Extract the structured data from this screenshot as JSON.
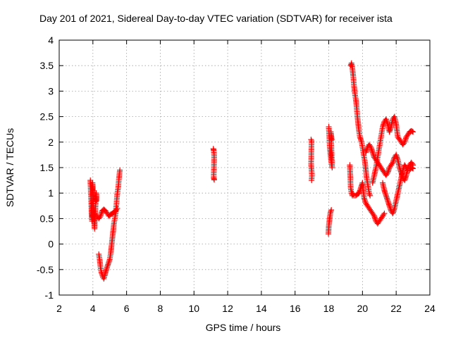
{
  "chart_data": {
    "type": "scatter",
    "title": "Day 201 of 2021, Sidereal Day-to-day VTEC variation (SDTVAR) for receiver ista",
    "xlabel": "GPS time / hours",
    "ylabel": "SDTVAR / TECUs",
    "xlim": [
      2,
      24
    ],
    "ylim": [
      -1,
      4
    ],
    "xticks": [
      2,
      4,
      6,
      8,
      10,
      12,
      14,
      16,
      18,
      20,
      22,
      24
    ],
    "yticks": [
      -1,
      -0.5,
      0,
      0.5,
      1,
      1.5,
      2,
      2.5,
      3,
      3.5,
      4
    ],
    "grid": true,
    "marker": "plus",
    "color": "#ff0000",
    "series": [
      {
        "name": "SDTVAR",
        "segments": [
          [
            [
              3.85,
              1.25
            ],
            [
              3.88,
              1.0
            ],
            [
              3.9,
              0.8
            ],
            [
              3.92,
              0.6
            ],
            [
              3.95,
              0.45
            ],
            [
              3.98,
              1.2
            ],
            [
              4.0,
              1.05
            ],
            [
              4.02,
              0.8
            ],
            [
              4.05,
              0.6
            ],
            [
              4.08,
              0.4
            ],
            [
              4.1,
              0.3
            ],
            [
              4.12,
              0.55
            ],
            [
              4.15,
              0.7
            ],
            [
              4.18,
              0.9
            ],
            [
              4.2,
              1.0
            ],
            [
              4.22,
              0.85
            ]
          ],
          [
            [
              4.25,
              0.55
            ],
            [
              4.35,
              0.5
            ],
            [
              4.45,
              0.55
            ],
            [
              4.55,
              0.65
            ],
            [
              4.65,
              0.68
            ],
            [
              4.75,
              0.65
            ],
            [
              4.85,
              0.6
            ],
            [
              4.95,
              0.55
            ],
            [
              5.05,
              0.58
            ],
            [
              5.15,
              0.6
            ],
            [
              5.25,
              0.62
            ],
            [
              5.35,
              0.65
            ],
            [
              5.45,
              0.7
            ]
          ],
          [
            [
              4.35,
              -0.2
            ],
            [
              4.4,
              -0.3
            ],
            [
              4.45,
              -0.45
            ],
            [
              4.5,
              -0.55
            ],
            [
              4.55,
              -0.6
            ],
            [
              4.6,
              -0.65
            ],
            [
              4.65,
              -0.68
            ],
            [
              4.7,
              -0.62
            ],
            [
              4.75,
              -0.55
            ],
            [
              4.8,
              -0.5
            ],
            [
              4.85,
              -0.45
            ],
            [
              4.9,
              -0.4
            ],
            [
              4.95,
              -0.35
            ],
            [
              5.0,
              -0.3
            ],
            [
              5.05,
              -0.2
            ],
            [
              5.1,
              -0.05
            ],
            [
              5.15,
              0.1
            ],
            [
              5.2,
              0.25
            ],
            [
              5.25,
              0.4
            ],
            [
              5.3,
              0.5
            ],
            [
              5.35,
              0.6
            ],
            [
              5.4,
              0.8
            ],
            [
              5.45,
              1.0
            ],
            [
              5.5,
              1.1
            ],
            [
              5.55,
              1.3
            ],
            [
              5.6,
              1.45
            ]
          ],
          [
            [
              11.15,
              1.87
            ],
            [
              11.17,
              1.83
            ],
            [
              11.2,
              1.73
            ],
            [
              11.17,
              1.3
            ],
            [
              11.2,
              1.26
            ]
          ],
          [
            [
              16.95,
              2.05
            ],
            [
              16.98,
              2.02
            ],
            [
              16.95,
              1.55
            ],
            [
              16.98,
              1.45
            ],
            [
              17.0,
              1.35
            ],
            [
              16.98,
              1.25
            ]
          ],
          [
            [
              17.98,
              0.2
            ],
            [
              18.0,
              0.35
            ],
            [
              18.05,
              0.5
            ],
            [
              18.1,
              0.62
            ],
            [
              18.15,
              0.67
            ]
          ],
          [
            [
              18.0,
              2.3
            ],
            [
              18.03,
              2.1
            ],
            [
              18.06,
              1.9
            ],
            [
              18.1,
              1.75
            ],
            [
              18.15,
              1.6
            ],
            [
              18.2,
              1.5
            ],
            [
              18.12,
              2.2
            ],
            [
              18.18,
              2.05
            ]
          ],
          [
            [
              19.25,
              1.55
            ],
            [
              19.28,
              1.3
            ],
            [
              19.3,
              1.1
            ],
            [
              19.35,
              1.0
            ],
            [
              19.4,
              0.95
            ]
          ],
          [
            [
              19.3,
              3.5
            ],
            [
              19.35,
              3.55
            ],
            [
              19.4,
              3.45
            ],
            [
              19.45,
              3.3
            ],
            [
              19.5,
              3.1
            ],
            [
              19.55,
              2.95
            ],
            [
              19.6,
              2.85
            ],
            [
              19.65,
              2.7
            ],
            [
              19.7,
              2.5
            ],
            [
              19.75,
              2.35
            ],
            [
              19.8,
              2.2
            ],
            [
              19.85,
              2.1
            ],
            [
              19.9,
              2.05
            ],
            [
              19.95,
              2.0
            ],
            [
              20.0,
              1.9
            ],
            [
              20.05,
              1.8
            ],
            [
              20.1,
              1.7
            ],
            [
              20.15,
              1.6
            ],
            [
              20.2,
              1.45
            ],
            [
              20.25,
              1.3
            ],
            [
              20.3,
              1.2
            ],
            [
              20.35,
              1.1
            ],
            [
              20.4,
              1.0
            ],
            [
              20.45,
              0.95
            ]
          ],
          [
            [
              19.4,
              1.0
            ],
            [
              19.5,
              0.95
            ],
            [
              19.6,
              0.95
            ],
            [
              19.7,
              0.98
            ],
            [
              19.8,
              1.0
            ],
            [
              19.9,
              1.1
            ],
            [
              20.0,
              1.2
            ],
            [
              20.05,
              1.05
            ],
            [
              20.1,
              0.9
            ],
            [
              20.2,
              0.8
            ],
            [
              20.3,
              0.75
            ],
            [
              20.4,
              0.7
            ],
            [
              20.5,
              0.65
            ],
            [
              20.6,
              0.6
            ],
            [
              20.7,
              0.55
            ],
            [
              20.8,
              0.45
            ],
            [
              20.9,
              0.4
            ],
            [
              21.0,
              0.45
            ],
            [
              21.1,
              0.5
            ],
            [
              21.2,
              0.55
            ],
            [
              21.3,
              0.6
            ]
          ],
          [
            [
              20.2,
              1.8
            ],
            [
              20.3,
              1.9
            ],
            [
              20.4,
              1.95
            ],
            [
              20.5,
              1.9
            ],
            [
              20.6,
              1.8
            ],
            [
              20.7,
              1.7
            ],
            [
              20.8,
              1.65
            ],
            [
              20.9,
              1.6
            ],
            [
              21.0,
              1.55
            ],
            [
              21.1,
              1.5
            ],
            [
              21.2,
              1.45
            ],
            [
              21.3,
              1.4
            ],
            [
              21.4,
              1.35
            ],
            [
              21.5,
              1.4
            ],
            [
              21.6,
              1.5
            ],
            [
              21.7,
              1.55
            ],
            [
              21.8,
              1.6
            ],
            [
              21.9,
              1.7
            ],
            [
              22.0,
              1.75
            ],
            [
              22.1,
              1.65
            ],
            [
              22.2,
              1.5
            ],
            [
              22.3,
              1.4
            ],
            [
              22.4,
              1.3
            ],
            [
              22.5,
              1.25
            ],
            [
              22.6,
              1.35
            ],
            [
              22.7,
              1.5
            ],
            [
              22.8,
              1.55
            ],
            [
              22.9,
              1.6
            ],
            [
              23.0,
              1.55
            ]
          ],
          [
            [
              20.6,
              1.2
            ],
            [
              20.7,
              1.35
            ],
            [
              20.8,
              1.5
            ],
            [
              20.9,
              1.7
            ],
            [
              21.0,
              1.9
            ],
            [
              21.1,
              2.1
            ],
            [
              21.2,
              2.3
            ],
            [
              21.3,
              2.4
            ],
            [
              21.4,
              2.45
            ],
            [
              21.5,
              2.35
            ],
            [
              21.6,
              2.2
            ],
            [
              21.7,
              2.3
            ],
            [
              21.8,
              2.45
            ],
            [
              21.9,
              2.5
            ],
            [
              22.0,
              2.35
            ],
            [
              22.1,
              2.1
            ],
            [
              22.2,
              2.05
            ],
            [
              22.3,
              2.0
            ],
            [
              22.4,
              1.95
            ],
            [
              22.5,
              2.0
            ],
            [
              22.6,
              2.1
            ],
            [
              22.7,
              2.15
            ],
            [
              22.8,
              2.2
            ],
            [
              22.9,
              2.22
            ],
            [
              23.0,
              2.2
            ]
          ],
          [
            [
              21.2,
              1.2
            ],
            [
              21.3,
              1.05
            ],
            [
              21.4,
              0.95
            ],
            [
              21.5,
              0.85
            ],
            [
              21.6,
              0.75
            ],
            [
              21.7,
              0.65
            ],
            [
              21.8,
              0.6
            ],
            [
              21.9,
              0.7
            ],
            [
              22.0,
              0.85
            ],
            [
              22.1,
              1.0
            ],
            [
              22.2,
              1.15
            ],
            [
              22.3,
              1.3
            ],
            [
              22.4,
              1.45
            ],
            [
              22.5,
              1.55
            ],
            [
              22.6,
              1.5
            ],
            [
              22.7,
              1.45
            ],
            [
              22.8,
              1.45
            ],
            [
              22.9,
              1.5
            ],
            [
              23.0,
              1.48
            ]
          ]
        ]
      }
    ]
  }
}
